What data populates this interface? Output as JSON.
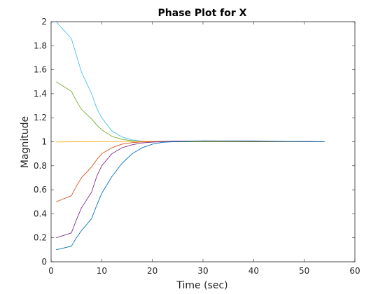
{
  "chart_data": {
    "type": "line",
    "title": "Phase Plot for X",
    "xlabel": "Time (sec)",
    "ylabel": "Magnitude",
    "xlim": [
      0,
      60
    ],
    "ylim": [
      0,
      2
    ],
    "xticks": [
      0,
      10,
      20,
      30,
      40,
      50,
      60
    ],
    "yticks": [
      0,
      0.2,
      0.4,
      0.6,
      0.8,
      1,
      1.2,
      1.4,
      1.6,
      1.8,
      2
    ],
    "xtick_labels": [
      "0",
      "10",
      "20",
      "30",
      "40",
      "50",
      "60"
    ],
    "ytick_labels": [
      "0",
      "0.2",
      "0.4",
      "0.6",
      "0.8",
      "1",
      "1.2",
      "1.4",
      "1.6",
      "1.8",
      "2"
    ],
    "grid": false,
    "legend": false,
    "series": [
      {
        "color": "#4DBEEE",
        "x": [
          1,
          4,
          5,
          6,
          8,
          9,
          10,
          12,
          14,
          16,
          18,
          20,
          24,
          30,
          40,
          54
        ],
        "y": [
          2.0,
          1.86,
          1.72,
          1.58,
          1.4,
          1.28,
          1.2,
          1.09,
          1.04,
          1.015,
          1.005,
          1.0,
          1.0,
          1.0,
          1.0,
          1.0
        ]
      },
      {
        "color": "#77AC30",
        "x": [
          1,
          4,
          5,
          6,
          8,
          9,
          10,
          12,
          14,
          16,
          18,
          20,
          24,
          30,
          40,
          54
        ],
        "y": [
          1.5,
          1.42,
          1.34,
          1.27,
          1.19,
          1.14,
          1.1,
          1.045,
          1.02,
          1.008,
          1.002,
          1.0,
          1.0,
          1.0,
          1.0,
          1.0
        ]
      },
      {
        "color": "#EDB120",
        "x": [
          1,
          5,
          10,
          15,
          20,
          25,
          30,
          40,
          54
        ],
        "y": [
          0.998,
          1.0,
          1.001,
          1.002,
          1.003,
          1.004,
          1.004,
          1.003,
          1.0
        ]
      },
      {
        "color": "#D95319",
        "x": [
          1,
          4,
          5,
          6,
          8,
          9,
          10,
          12,
          14,
          16,
          18,
          20,
          24,
          30,
          40,
          54
        ],
        "y": [
          0.5,
          0.55,
          0.63,
          0.7,
          0.79,
          0.85,
          0.9,
          0.95,
          0.98,
          0.993,
          0.998,
          1.0,
          1.005,
          1.005,
          1.003,
          1.0
        ]
      },
      {
        "color": "#7E2F8E",
        "x": [
          1,
          4,
          5,
          6,
          8,
          9,
          10,
          12,
          14,
          16,
          18,
          20,
          22,
          24,
          30,
          40,
          54
        ],
        "y": [
          0.2,
          0.24,
          0.35,
          0.45,
          0.58,
          0.71,
          0.8,
          0.9,
          0.95,
          0.975,
          0.99,
          0.997,
          1.0,
          1.005,
          1.007,
          1.005,
          1.0
        ]
      },
      {
        "color": "#0072BD",
        "x": [
          1,
          4,
          5,
          6,
          8,
          9,
          10,
          12,
          14,
          16,
          18,
          20,
          22,
          24,
          30,
          40,
          54
        ],
        "y": [
          0.1,
          0.13,
          0.2,
          0.26,
          0.36,
          0.47,
          0.57,
          0.71,
          0.82,
          0.9,
          0.95,
          0.98,
          0.995,
          1.0,
          1.007,
          1.007,
          1.0
        ]
      }
    ]
  }
}
